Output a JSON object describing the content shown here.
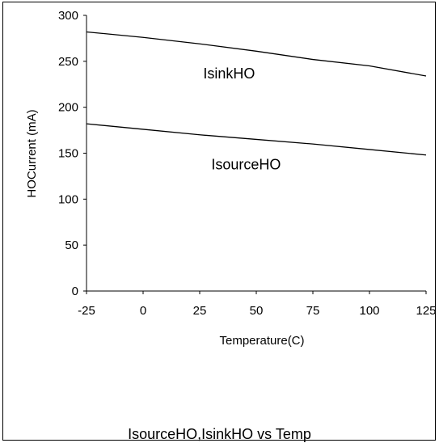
{
  "chart_data": {
    "type": "line",
    "title": "IsourceHO,IsinkHO  vs Temp",
    "xlabel": "Temperature(C)",
    "ylabel": "HOCurrent (mA)",
    "xlim": [
      -25,
      125
    ],
    "ylim": [
      0,
      300
    ],
    "x_ticks": [
      "-25",
      "0",
      "25",
      "50",
      "75",
      "100",
      "125"
    ],
    "y_ticks": [
      "0",
      "50",
      "100",
      "150",
      "200",
      "250",
      "300"
    ],
    "grid": false,
    "x": [
      -25,
      0,
      25,
      50,
      75,
      100,
      125
    ],
    "series": [
      {
        "name": "IsinkHO",
        "values": [
          282,
          276,
          269,
          261,
          252,
          245,
          234
        ]
      },
      {
        "name": "IsourceHO",
        "values": [
          182,
          176,
          170,
          165,
          160,
          154,
          148
        ]
      }
    ],
    "colors": {
      "line": "#000000",
      "axis": "#000000",
      "background": "#ffffff"
    }
  }
}
